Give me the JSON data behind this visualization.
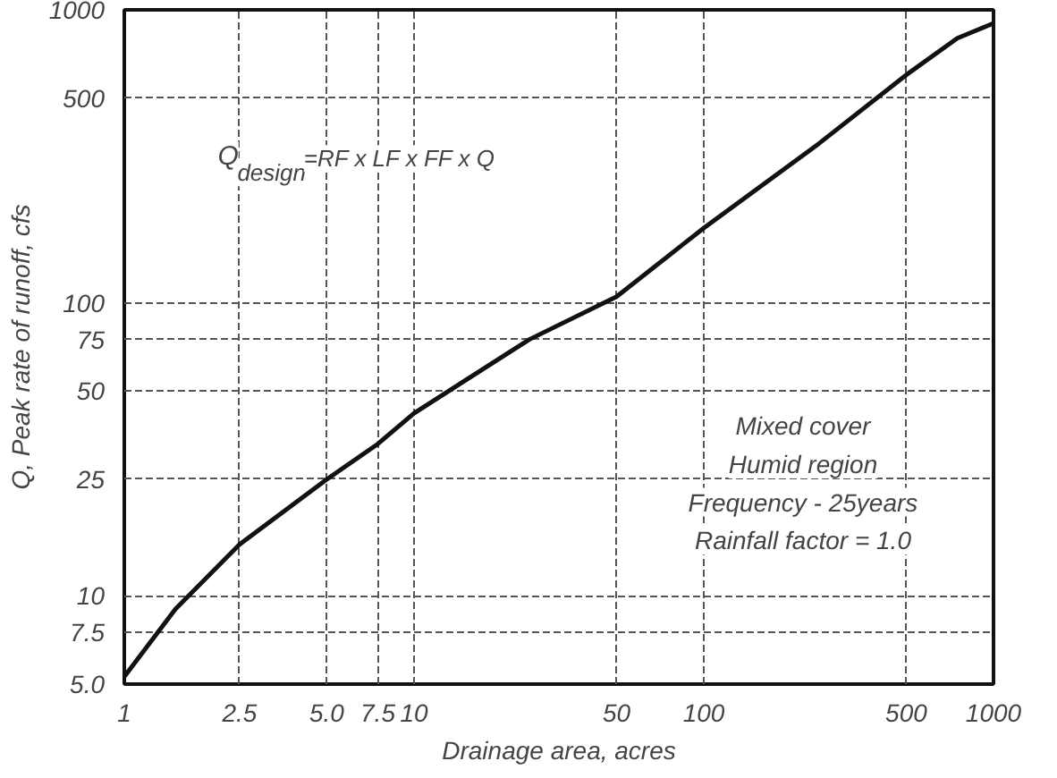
{
  "chart_data": {
    "type": "line",
    "xlabel": "Drainage area, acres",
    "ylabel": "Q, Peak rate of runoff, cfs",
    "x": [
      1,
      1.5,
      2.5,
      5,
      7.5,
      10,
      25,
      50,
      100,
      250,
      500,
      750,
      1000
    ],
    "series": [
      {
        "color": "#111111",
        "values": [
          5.3,
          9,
          15,
          25,
          33,
          42,
          75,
          105,
          180,
          350,
          600,
          800,
          900
        ]
      }
    ],
    "log": "xy",
    "grid": true,
    "xlim": [
      1,
      1000
    ],
    "ylim": [
      5,
      1000
    ],
    "xticks": [
      {
        "value": 1,
        "label": "1"
      },
      2.5,
      {
        "value": 5,
        "label": "5.0"
      },
      7.5,
      10,
      50,
      100,
      500,
      1000
    ],
    "yticks": [
      {
        "value": 5,
        "label": "5.0"
      },
      7.5,
      10,
      25,
      50,
      75,
      100,
      500,
      1000
    ],
    "annotations": [
      "Q$_{design}$=RF x LF x FF x Q",
      "Mixed cover",
      "Humid region",
      "Frequency - 25years",
      "Rainfall factor = 1.0"
    ]
  }
}
